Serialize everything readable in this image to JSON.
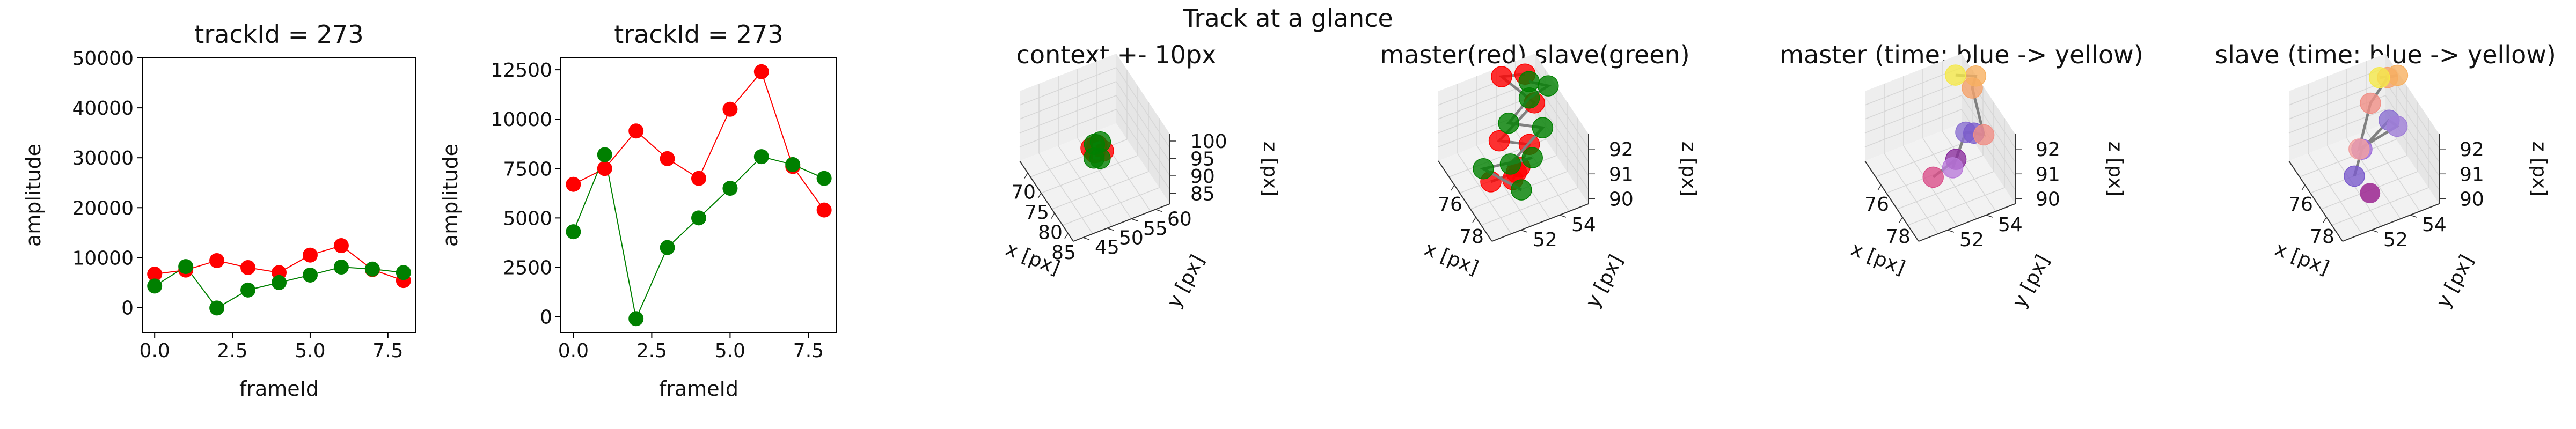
{
  "suptitle": "Track at a glance",
  "chart_data": [
    {
      "type": "line",
      "title": "trackId = 273",
      "xlabel": "frameId",
      "ylabel": "amplitude",
      "xlim": [
        -0.4,
        8.4
      ],
      "ylim": [
        -5000,
        50000
      ],
      "xticks": [
        "0.0",
        "2.5",
        "5.0",
        "7.5"
      ],
      "yticks": [
        "0",
        "10000",
        "20000",
        "30000",
        "40000",
        "50000"
      ],
      "x": [
        0,
        1,
        2,
        3,
        4,
        5,
        6,
        7,
        8
      ],
      "series": [
        {
          "color": "#ff0000",
          "values": [
            6700,
            7500,
            9400,
            8000,
            7000,
            10500,
            12400,
            7600,
            5400
          ]
        },
        {
          "color": "#008000",
          "values": [
            4300,
            8200,
            -100,
            3500,
            5000,
            6500,
            8100,
            7700,
            7000
          ]
        }
      ]
    },
    {
      "type": "line",
      "title": "trackId = 273",
      "xlabel": "frameId",
      "ylabel": "amplitude",
      "xlim": [
        -0.4,
        8.4
      ],
      "ylim": [
        -800,
        13100
      ],
      "xticks": [
        "0.0",
        "2.5",
        "5.0",
        "7.5"
      ],
      "yticks": [
        "0",
        "2500",
        "5000",
        "7500",
        "10000",
        "12500"
      ],
      "x": [
        0,
        1,
        2,
        3,
        4,
        5,
        6,
        7,
        8
      ],
      "series": [
        {
          "color": "#ff0000",
          "values": [
            6700,
            7500,
            9400,
            8000,
            7000,
            10500,
            12400,
            7600,
            5400
          ]
        },
        {
          "color": "#008000",
          "values": [
            4300,
            8200,
            -100,
            3500,
            5000,
            6500,
            8100,
            7700,
            7000
          ]
        }
      ]
    },
    {
      "type": "scatter3d",
      "title": "context +- 10px",
      "xlabel": "x [px]",
      "ylabel": "y [px]",
      "zlabel": "z [px]",
      "xlim": [
        67,
        87
      ],
      "ylim": [
        43,
        63
      ],
      "zlim": [
        82,
        102
      ],
      "xticks": [
        "70",
        "75",
        "80",
        "85"
      ],
      "yticks": [
        "45",
        "50",
        "55",
        "60"
      ],
      "zticks": [
        "85",
        "90",
        "95",
        "100"
      ],
      "series": [
        {
          "color": "#ff0000",
          "points": [
            [
              76.0,
              54.0,
              91.0
            ],
            [
              77.0,
              53.0,
              90.5
            ],
            [
              76.5,
              52.5,
              91.5
            ],
            [
              77.5,
              54.5,
              90.8
            ]
          ]
        },
        {
          "color": "#008000",
          "points": [
            [
              76.2,
              54.6,
              91.8
            ],
            [
              75.8,
              53.6,
              91.2
            ],
            [
              77.8,
              52.4,
              90.2
            ],
            [
              78.6,
              53.2,
              90.6
            ]
          ]
        }
      ]
    },
    {
      "type": "scatter3d",
      "title": "master(red) slave(green)",
      "xlabel": "x [px]",
      "ylabel": "y [px]",
      "zlabel": "z [px]",
      "xlim": [
        74.5,
        79.5
      ],
      "ylim": [
        50.5,
        55.5
      ],
      "zlim": [
        89.8,
        92.6
      ],
      "xticks": [
        "76",
        "78"
      ],
      "yticks": [
        "52",
        "54"
      ],
      "zticks": [
        "90",
        "91",
        "92"
      ],
      "series": [
        {
          "color": "#ff0000",
          "points": [
            [
              75.2,
              54.6,
              92.5
            ],
            [
              75.0,
              53.5,
              92.6
            ],
            [
              76.8,
              54.2,
              92.5
            ],
            [
              76.4,
              52.6,
              91.2
            ],
            [
              77.4,
              53.6,
              91.4
            ],
            [
              77.6,
              53.0,
              90.8
            ],
            [
              78.2,
              52.3,
              90.9
            ],
            [
              76.2,
              53.6,
              89.5
            ],
            [
              75.8,
              52.5,
              89.2
            ]
          ]
        },
        {
          "color": "#008000",
          "points": [
            [
              75.4,
              54.7,
              92.3
            ],
            [
              76.1,
              55.3,
              92.4
            ],
            [
              75.6,
              54.6,
              91.8
            ],
            [
              76.2,
              53.2,
              91.6
            ],
            [
              77.2,
              54.4,
              91.7
            ],
            [
              76.9,
              52.9,
              90.5
            ],
            [
              77.5,
              53.7,
              90.9
            ],
            [
              76.0,
              52.0,
              90.0
            ],
            [
              79.0,
              52.3,
              91.0
            ]
          ]
        }
      ]
    },
    {
      "type": "scatter3d",
      "title": "master (time: blue -> yellow)",
      "xlabel": "x [px]",
      "ylabel": "y [px]",
      "zlabel": "z [px]",
      "xlim": [
        74.5,
        79.5
      ],
      "ylim": [
        50.5,
        55.5
      ],
      "zlim": [
        89.8,
        92.6
      ],
      "xticks": [
        "76",
        "78"
      ],
      "yticks": [
        "52",
        "54"
      ],
      "zticks": [
        "90",
        "91",
        "92"
      ],
      "colors": [
        "#d94f8a",
        "#8b2e9e",
        "#b97ad9",
        "#8a6fd1",
        "#7a5bcc",
        "#f08f86",
        "#f5a26b",
        "#f7b060",
        "#f5e94a"
      ],
      "points": [
        [
          76.0,
          53.2,
          89.3
        ],
        [
          77.4,
          53.6,
          90.8
        ],
        [
          78.0,
          53.1,
          91.0
        ],
        [
          77.6,
          54.0,
          91.9
        ],
        [
          77.8,
          54.3,
          91.9
        ],
        [
          78.2,
          54.6,
          92.0
        ],
        [
          76.4,
          55.0,
          92.6
        ],
        [
          76.0,
          55.4,
          92.7
        ],
        [
          75.2,
          54.8,
          92.4
        ]
      ]
    },
    {
      "type": "scatter3d",
      "title": "slave (time: blue -> yellow)",
      "xlabel": "x [px]",
      "ylabel": "y [px]",
      "zlabel": "z [px]",
      "xlim": [
        74.5,
        79.5
      ],
      "ylim": [
        50.5,
        55.5
      ],
      "zlim": [
        89.8,
        92.6
      ],
      "xticks": [
        "76",
        "78"
      ],
      "yticks": [
        "52",
        "54"
      ],
      "zticks": [
        "90",
        "91",
        "92"
      ],
      "colors": [
        "#7a5bcc",
        "#9c6ad8",
        "#8a6fd1",
        "#a07fd8",
        "#f2a0a0",
        "#f08f86",
        "#f5a26b",
        "#f7b060",
        "#f5e94a"
      ],
      "points": [
        [
          77.0,
          52.5,
          90.2
        ],
        [
          76.8,
          53.0,
          91.0
        ],
        [
          77.0,
          54.3,
          91.9
        ],
        [
          77.2,
          54.6,
          91.7
        ],
        [
          76.0,
          53.3,
          90.4
        ],
        [
          75.8,
          54.0,
          91.9
        ],
        [
          75.6,
          55.0,
          92.5
        ],
        [
          75.8,
          55.4,
          92.6
        ],
        [
          75.2,
          54.8,
          92.3
        ]
      ],
      "extra_points": [
        {
          "color": "#9b2490",
          "point": [
            79.0,
            52.2,
            90.9
          ]
        }
      ]
    }
  ]
}
